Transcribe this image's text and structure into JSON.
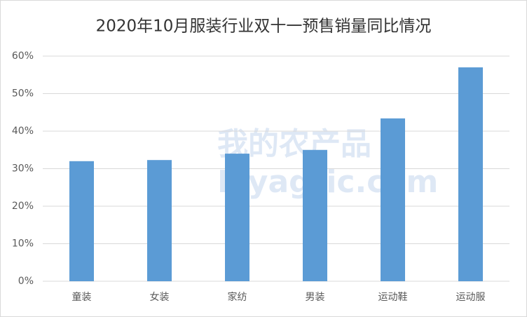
{
  "chart_data": {
    "type": "bar",
    "title": "2020年10月服装行业双十一预售销量同比情况",
    "categories": [
      "童装",
      "女装",
      "家纺",
      "男装",
      "运动鞋",
      "运动服"
    ],
    "values": [
      32,
      32.3,
      34,
      35,
      43.4,
      57
    ],
    "color": "#5b9bd5",
    "ylim": [
      0,
      60
    ],
    "yticks": [
      {
        "value": 0,
        "label": "0%"
      },
      {
        "value": 10,
        "label": "10%"
      },
      {
        "value": 20,
        "label": "20%"
      },
      {
        "value": 30,
        "label": "30%"
      },
      {
        "value": 40,
        "label": "40%"
      },
      {
        "value": 50,
        "label": "50%"
      },
      {
        "value": 60,
        "label": "60%"
      }
    ],
    "grid": true,
    "watermark": [
      "我的农产品",
      "Myagric.com"
    ]
  }
}
